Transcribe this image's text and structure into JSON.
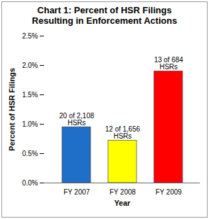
{
  "chart_data": {
    "type": "bar",
    "title": "Chart 1:  Percent of HSR Filings\nResulting in Enforcement Actions",
    "xlabel": "Year",
    "ylabel": "Percent of HSR Filings",
    "categories": [
      "FY 2007",
      "FY 2008",
      "FY 2009"
    ],
    "values": [
      0.95,
      0.72,
      1.9
    ],
    "colors": [
      "#1f6fc8",
      "#ffff00",
      "#ff0000"
    ],
    "annotations": [
      "20 of 2,108\nHSRs",
      "12 of 1,656\nHSRs",
      "13 of 684\nHSRs"
    ],
    "ylim": [
      0,
      2.5
    ],
    "yticks": [
      {
        "value": 0,
        "label": "0.0%"
      },
      {
        "value": 0.5,
        "label": "0.5%"
      },
      {
        "value": 1,
        "label": "1.0%"
      },
      {
        "value": 1.5,
        "label": "1.5%"
      },
      {
        "value": 2,
        "label": "2.0%"
      },
      {
        "value": 2.5,
        "label": "2.5%"
      }
    ],
    "grid": false
  }
}
